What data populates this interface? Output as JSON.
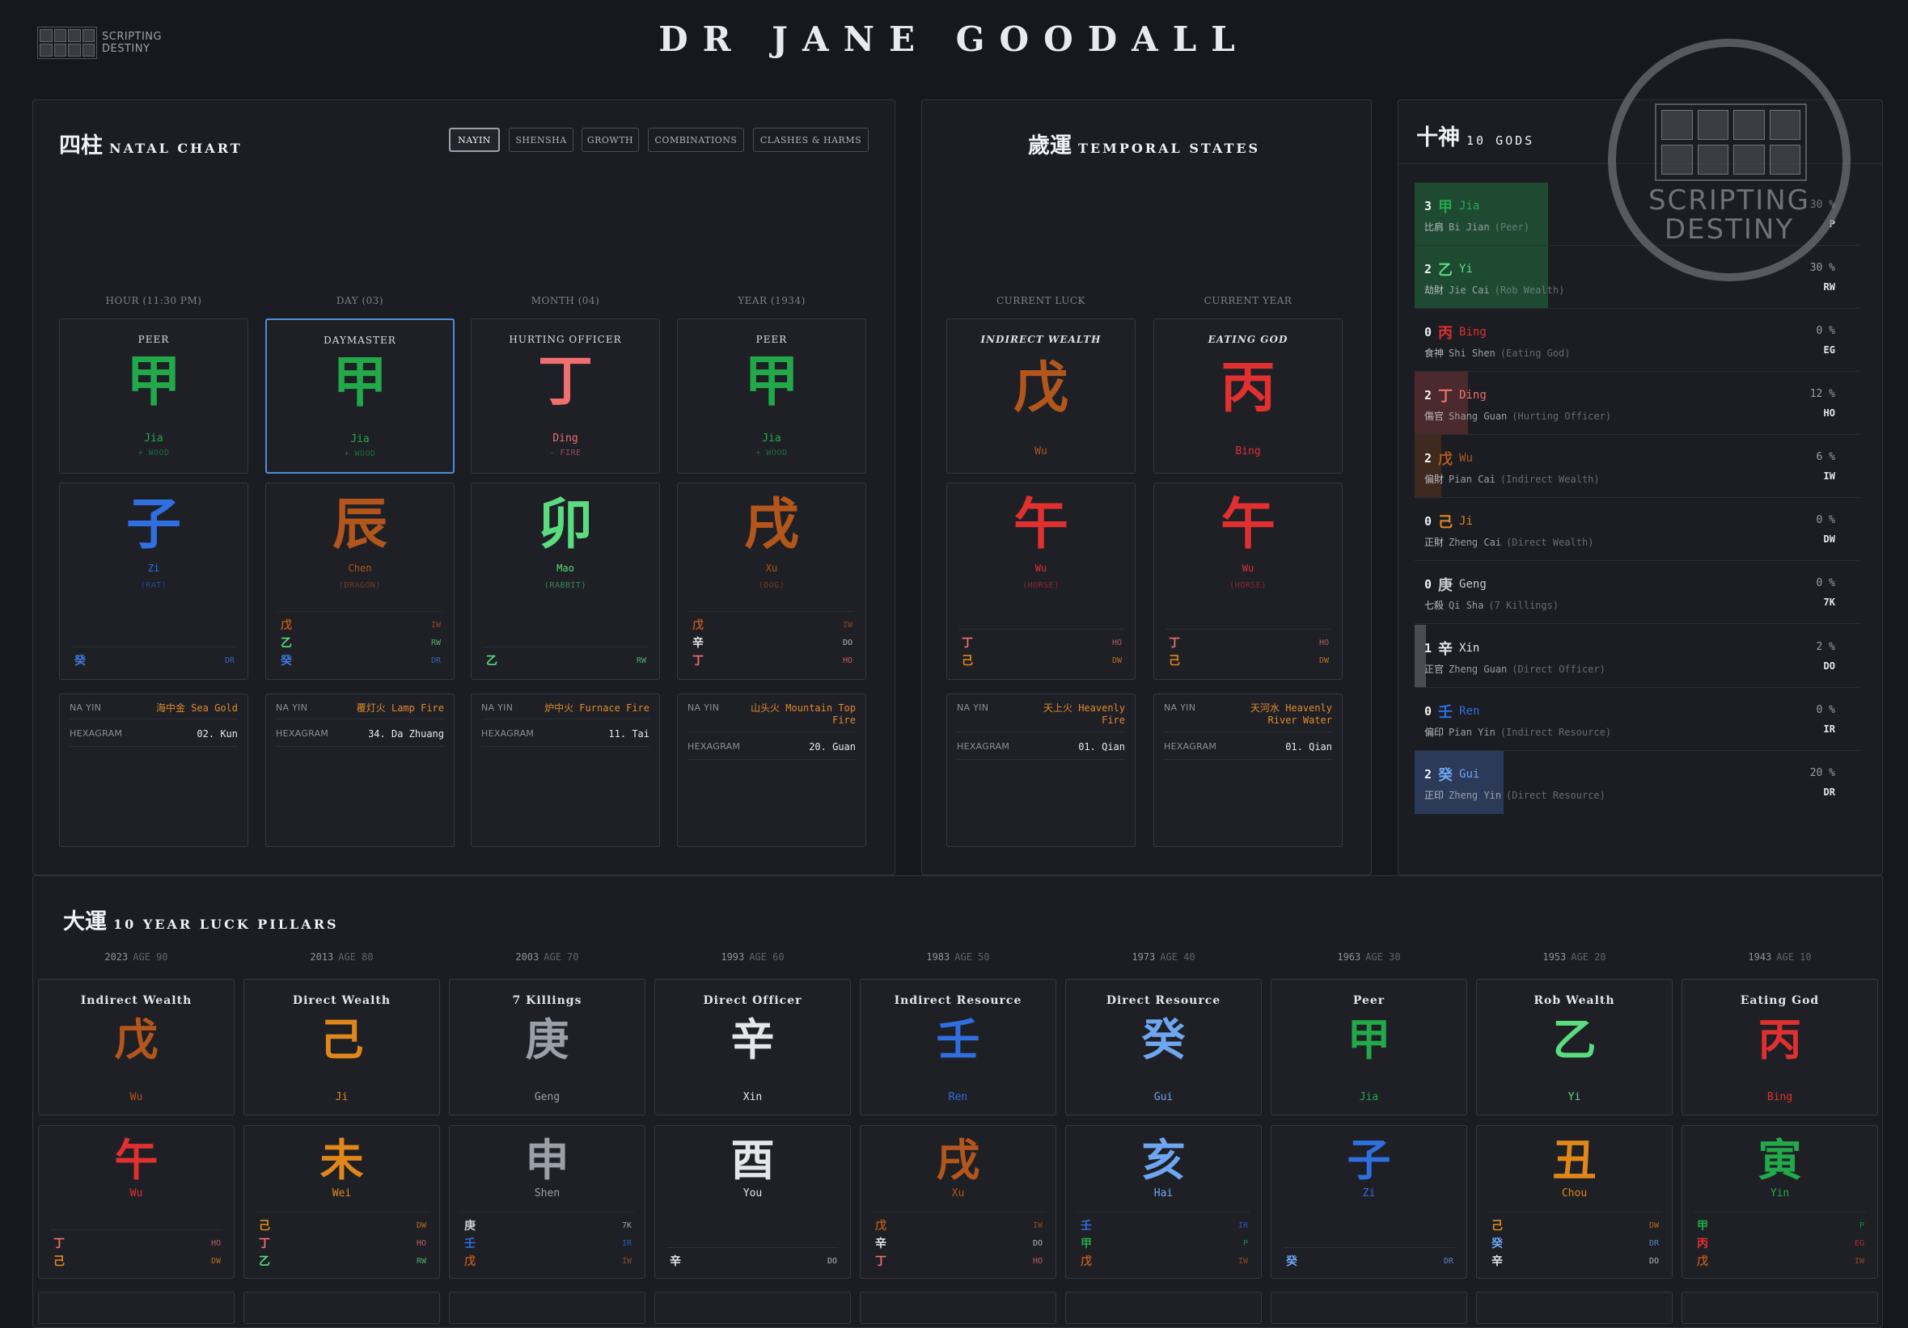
{
  "header": {
    "title": "DR JANE GOODALL",
    "logo_line1": "SCRIPTING",
    "logo_line2": "DESTINY"
  },
  "watermark": {
    "line1": "SCRIPTING",
    "line2": "DESTINY"
  },
  "natal": {
    "title_cn": "四柱",
    "title_en": "NATAL CHART",
    "tabs": [
      "NAYIN",
      "SHENSHA",
      "GROWTH",
      "COMBINATIONS",
      "CLASHES & HARMS"
    ],
    "info_labels": {
      "nayin": "NA YIN",
      "hexagram": "HEXAGRAM"
    },
    "pillars": [
      {
        "label": "HOUR (11:30 PM)",
        "role": "PEER",
        "stem": "甲",
        "stem_color": "#22a94a",
        "stem_name": "Jia",
        "stem_elem": "+ WOOD",
        "branch": "子",
        "branch_color": "#2f6fe0",
        "branch_name": "Zi",
        "branch_animal": "(RAT)",
        "hidden": [
          {
            "g": "癸",
            "a": "DR",
            "c": "#3e7ae0"
          }
        ],
        "nayin": "海中金 Sea Gold",
        "hexagram": "02. Kun"
      },
      {
        "label": "DAY (03)",
        "role": "DAYMASTER",
        "stem": "甲",
        "stem_color": "#22a94a",
        "stem_name": "Jia",
        "stem_elem": "+ WOOD",
        "branch": "辰",
        "branch_color": "#b3561c",
        "branch_name": "Chen",
        "branch_animal": "(DRAGON)",
        "hidden": [
          {
            "g": "戊",
            "a": "IW",
            "c": "#b3561c"
          },
          {
            "g": "乙",
            "a": "RW",
            "c": "#5bdc7f"
          },
          {
            "g": "癸",
            "a": "DR",
            "c": "#3e7ae0"
          }
        ],
        "nayin": "覆灯火 Lamp Fire",
        "hexagram": "34. Da Zhuang"
      },
      {
        "label": "MONTH (04)",
        "role": "HURTING OFFICER",
        "stem": "丁",
        "stem_color": "#f07070",
        "stem_name": "Ding",
        "stem_elem": "- FIRE",
        "branch": "卯",
        "branch_color": "#5bdc7f",
        "branch_name": "Mao",
        "branch_animal": "(RABBIT)",
        "hidden": [
          {
            "g": "乙",
            "a": "RW",
            "c": "#5bdc7f"
          }
        ],
        "nayin": "炉中火 Furnace Fire",
        "hexagram": "11. Tai"
      },
      {
        "label": "YEAR (1934)",
        "role": "PEER",
        "stem": "甲",
        "stem_color": "#22a94a",
        "stem_name": "Jia",
        "stem_elem": "+ WOOD",
        "branch": "戌",
        "branch_color": "#b3561c",
        "branch_name": "Xu",
        "branch_animal": "(DOG)",
        "hidden": [
          {
            "g": "戊",
            "a": "IW",
            "c": "#b3561c"
          },
          {
            "g": "辛",
            "a": "DO",
            "c": "#e5e6ea"
          },
          {
            "g": "丁",
            "a": "HO",
            "c": "#f07070"
          }
        ],
        "nayin": "山头火 Mountain Top Fire",
        "hexagram": "20. Guan"
      }
    ]
  },
  "temporal": {
    "title_cn": "歲運",
    "title_en": "TEMPORAL STATES",
    "pillars": [
      {
        "label": "CURRENT LUCK",
        "role": "INDIRECT WEALTH",
        "stem": "戊",
        "stem_color": "#b3561c",
        "stem_name": "Wu",
        "branch": "午",
        "branch_color": "#e03030",
        "branch_name": "Wu",
        "branch_animal": "(HORSE)",
        "hidden": [
          {
            "g": "丁",
            "a": "HO",
            "c": "#f07070"
          },
          {
            "g": "己",
            "a": "DW",
            "c": "#e0871c"
          }
        ],
        "nayin": "天上火 Heavenly Fire",
        "hexagram": "01. Qian"
      },
      {
        "label": "CURRENT YEAR",
        "role": "EATING GOD",
        "stem": "丙",
        "stem_color": "#e03030",
        "stem_name": "Bing",
        "branch": "午",
        "branch_color": "#e03030",
        "branch_name": "Wu",
        "branch_animal": "(HORSE)",
        "hidden": [
          {
            "g": "丁",
            "a": "HO",
            "c": "#f07070"
          },
          {
            "g": "己",
            "a": "DW",
            "c": "#e0871c"
          }
        ],
        "nayin": "天河水 Heavenly River Water",
        "hexagram": "01. Qian"
      }
    ]
  },
  "gods": {
    "title_cn": "十神",
    "title_en": "10 GODS",
    "items": [
      {
        "count": "3",
        "glyph": "甲",
        "pinyin": "Jia",
        "color": "#22a94a",
        "cn": "比肩",
        "en_a": "Bi Jian",
        "en_b": "(Peer)",
        "pct": "30 %",
        "abbr": "P",
        "fill": 0.3,
        "bar": "#1f4a32"
      },
      {
        "count": "2",
        "glyph": "乙",
        "pinyin": "Yi",
        "color": "#5bdc7f",
        "cn": "劫財",
        "en_a": "Jie Cai",
        "en_b": "(Rob Wealth)",
        "pct": "30 %",
        "abbr": "RW",
        "fill": 0.3,
        "bar": "#1f4a32"
      },
      {
        "count": "0",
        "glyph": "丙",
        "pinyin": "Bing",
        "color": "#e03030",
        "cn": "食神",
        "en_a": "Shi Shen",
        "en_b": "(Eating God)",
        "pct": "0 %",
        "abbr": "EG",
        "fill": 0,
        "bar": "#4a2a2a"
      },
      {
        "count": "2",
        "glyph": "丁",
        "pinyin": "Ding",
        "color": "#f07070",
        "cn": "傷官",
        "en_a": "Shang Guan",
        "en_b": "(Hurting Officer)",
        "pct": "12 %",
        "abbr": "HO",
        "fill": 0.12,
        "bar": "#4a2a2c"
      },
      {
        "count": "2",
        "glyph": "戊",
        "pinyin": "Wu",
        "color": "#b3561c",
        "cn": "偏財",
        "en_a": "Pian Cai",
        "en_b": "(Indirect Wealth)",
        "pct": "6 %",
        "abbr": "IW",
        "fill": 0.06,
        "bar": "#3e2a1e"
      },
      {
        "count": "0",
        "glyph": "己",
        "pinyin": "Ji",
        "color": "#e0871c",
        "cn": "正財",
        "en_a": "Zheng Cai",
        "en_b": "(Direct Wealth)",
        "pct": "0 %",
        "abbr": "DW",
        "fill": 0,
        "bar": "#3e2a1e"
      },
      {
        "count": "0",
        "glyph": "庚",
        "pinyin": "Geng",
        "color": "#c8cad0",
        "cn": "七殺",
        "en_a": "Qi Sha",
        "en_b": "(7 Killings)",
        "pct": "0 %",
        "abbr": "7K",
        "fill": 0,
        "bar": "#3a3c42"
      },
      {
        "count": "1",
        "glyph": "辛",
        "pinyin": "Xin",
        "color": "#e5e6ea",
        "cn": "正官",
        "en_a": "Zheng Guan",
        "en_b": "(Direct Officer)",
        "pct": "2 %",
        "abbr": "DO",
        "fill": 0.02,
        "bar": "#4a4c52"
      },
      {
        "count": "0",
        "glyph": "壬",
        "pinyin": "Ren",
        "color": "#2f6fe0",
        "cn": "偏印",
        "en_a": "Pian Yin",
        "en_b": "(Indirect Resource)",
        "pct": "0 %",
        "abbr": "IR",
        "fill": 0,
        "bar": "#243250"
      },
      {
        "count": "2",
        "glyph": "癸",
        "pinyin": "Gui",
        "color": "#6fa6f0",
        "cn": "正印",
        "en_a": "Zheng Yin",
        "en_b": "(Direct Resource)",
        "pct": "20 %",
        "abbr": "DR",
        "fill": 0.2,
        "bar": "#2b3a58"
      }
    ]
  },
  "luck": {
    "title_cn": "大運",
    "title_en": "10 YEAR LUCK PILLARS",
    "pillars": [
      {
        "year": "2023",
        "age": "AGE 90",
        "role": "Indirect Wealth",
        "stem": "戊",
        "stem_color": "#b3561c",
        "stem_name": "Wu",
        "branch": "午",
        "branch_color": "#e03030",
        "branch_name": "Wu",
        "hidden": [
          {
            "g": "丁",
            "a": "HO",
            "c": "#f07070"
          },
          {
            "g": "己",
            "a": "DW",
            "c": "#e0871c"
          }
        ]
      },
      {
        "year": "2013",
        "age": "AGE 80",
        "role": "Direct Wealth",
        "stem": "己",
        "stem_color": "#e0871c",
        "stem_name": "Ji",
        "branch": "未",
        "branch_color": "#e0871c",
        "branch_name": "Wei",
        "hidden": [
          {
            "g": "己",
            "a": "DW",
            "c": "#e0871c"
          },
          {
            "g": "丁",
            "a": "HO",
            "c": "#f07070"
          },
          {
            "g": "乙",
            "a": "RW",
            "c": "#5bdc7f"
          }
        ]
      },
      {
        "year": "2003",
        "age": "AGE 70",
        "role": "7 Killings",
        "stem": "庚",
        "stem_color": "#9aa0aa",
        "stem_name": "Geng",
        "branch": "申",
        "branch_color": "#9aa0aa",
        "branch_name": "Shen",
        "hidden": [
          {
            "g": "庚",
            "a": "7K",
            "c": "#c8cad0"
          },
          {
            "g": "壬",
            "a": "IR",
            "c": "#2f6fe0"
          },
          {
            "g": "戊",
            "a": "IW",
            "c": "#b3561c"
          }
        ]
      },
      {
        "year": "1993",
        "age": "AGE 60",
        "role": "Direct Officer",
        "stem": "辛",
        "stem_color": "#e5e6ea",
        "stem_name": "Xin",
        "branch": "酉",
        "branch_color": "#e5e6ea",
        "branch_name": "You",
        "hidden": [
          {
            "g": "辛",
            "a": "DO",
            "c": "#e5e6ea"
          }
        ]
      },
      {
        "year": "1983",
        "age": "AGE 50",
        "role": "Indirect Resource",
        "stem": "壬",
        "stem_color": "#2f6fe0",
        "stem_name": "Ren",
        "branch": "戌",
        "branch_color": "#b3561c",
        "branch_name": "Xu",
        "hidden": [
          {
            "g": "戊",
            "a": "IW",
            "c": "#b3561c"
          },
          {
            "g": "辛",
            "a": "DO",
            "c": "#e5e6ea"
          },
          {
            "g": "丁",
            "a": "HO",
            "c": "#f07070"
          }
        ]
      },
      {
        "year": "1973",
        "age": "AGE 40",
        "role": "Direct Resource",
        "stem": "癸",
        "stem_color": "#6fa6f0",
        "stem_name": "Gui",
        "branch": "亥",
        "branch_color": "#6fa6f0",
        "branch_name": "Hai",
        "hidden": [
          {
            "g": "壬",
            "a": "IR",
            "c": "#2f6fe0"
          },
          {
            "g": "甲",
            "a": "P",
            "c": "#22a94a"
          },
          {
            "g": "戊",
            "a": "IW",
            "c": "#b3561c"
          }
        ]
      },
      {
        "year": "1963",
        "age": "AGE 30",
        "role": "Peer",
        "stem": "甲",
        "stem_color": "#22a94a",
        "stem_name": "Jia",
        "branch": "子",
        "branch_color": "#2f6fe0",
        "branch_name": "Zi",
        "hidden": [
          {
            "g": "癸",
            "a": "DR",
            "c": "#6fa6f0"
          }
        ]
      },
      {
        "year": "1953",
        "age": "AGE 20",
        "role": "Rob Wealth",
        "stem": "乙",
        "stem_color": "#5bdc7f",
        "stem_name": "Yi",
        "branch": "丑",
        "branch_color": "#e0871c",
        "branch_name": "Chou",
        "hidden": [
          {
            "g": "己",
            "a": "DW",
            "c": "#e0871c"
          },
          {
            "g": "癸",
            "a": "DR",
            "c": "#6fa6f0"
          },
          {
            "g": "辛",
            "a": "DO",
            "c": "#e5e6ea"
          }
        ]
      },
      {
        "year": "1943",
        "age": "AGE 10",
        "role": "Eating God",
        "stem": "丙",
        "stem_color": "#e03030",
        "stem_name": "Bing",
        "branch": "寅",
        "branch_color": "#22a94a",
        "branch_name": "Yin",
        "hidden": [
          {
            "g": "甲",
            "a": "P",
            "c": "#22a94a"
          },
          {
            "g": "丙",
            "a": "EG",
            "c": "#e03030"
          },
          {
            "g": "戊",
            "a": "IW",
            "c": "#b3561c"
          }
        ]
      }
    ]
  }
}
